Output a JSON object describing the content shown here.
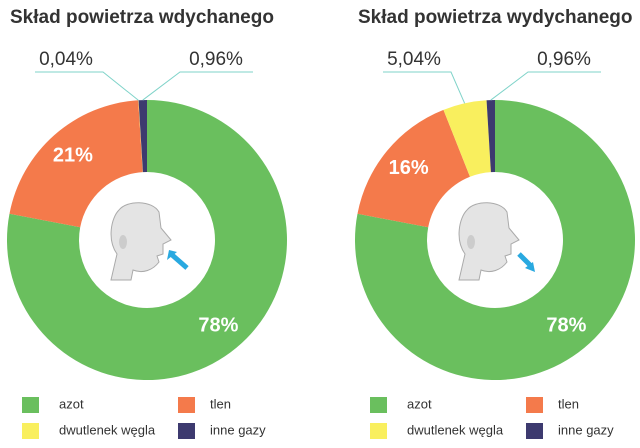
{
  "chart_data": [
    {
      "type": "pie",
      "title": "Skład powietrza wdychanego",
      "categories": [
        "azot",
        "tlen",
        "dwutlenek węgla",
        "inne gazy"
      ],
      "values": [
        78,
        21,
        0.04,
        0.96
      ],
      "value_labels": [
        "78%",
        "21%",
        "0,04%",
        "0,96%"
      ],
      "colors": [
        "#6abf5e",
        "#f47a4b",
        "#f9ef5e",
        "#3d3a6f"
      ]
    },
    {
      "type": "pie",
      "title": "Skład powietrza wydychanego",
      "categories": [
        "azot",
        "tlen",
        "dwutlenek węgla",
        "inne gazy"
      ],
      "values": [
        78,
        16,
        5.04,
        0.96
      ],
      "value_labels": [
        "78%",
        "16%",
        "5,04%",
        "0,96%"
      ],
      "colors": [
        "#6abf5e",
        "#f47a4b",
        "#f9ef5e",
        "#3d3a6f"
      ]
    }
  ]
}
